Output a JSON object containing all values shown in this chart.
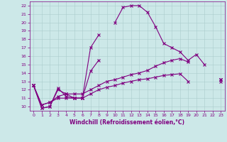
{
  "xlabel": "Windchill (Refroidissement éolien,°C)",
  "x_values": [
    0,
    1,
    2,
    3,
    4,
    5,
    6,
    7,
    8,
    9,
    10,
    11,
    12,
    13,
    14,
    15,
    16,
    17,
    18,
    19,
    20,
    21,
    22,
    23
  ],
  "line1_y": [
    12.5,
    9.8,
    10.0,
    12.0,
    11.5,
    11.0,
    11.0,
    17.0,
    18.5,
    null,
    20.0,
    21.8,
    22.0,
    22.0,
    21.2,
    19.5,
    17.5,
    17.0,
    16.5,
    15.5,
    16.2,
    15.0,
    null,
    13.0
  ],
  "line2_y": [
    12.5,
    9.8,
    10.0,
    12.2,
    11.2,
    11.0,
    11.0,
    14.2,
    15.5,
    null,
    null,
    null,
    null,
    null,
    null,
    null,
    null,
    null,
    null,
    null,
    null,
    null,
    null,
    13.2
  ],
  "line3_y": [
    12.5,
    10.2,
    10.5,
    11.2,
    11.5,
    11.5,
    11.5,
    12.0,
    12.5,
    13.0,
    13.2,
    13.5,
    13.8,
    14.0,
    14.3,
    14.8,
    15.2,
    15.5,
    15.7,
    15.3,
    null,
    null,
    null,
    13.2
  ],
  "line4_y": [
    12.5,
    10.2,
    10.5,
    11.0,
    11.0,
    11.0,
    11.0,
    11.5,
    12.0,
    12.3,
    12.5,
    12.8,
    13.0,
    13.2,
    13.3,
    13.5,
    13.7,
    13.8,
    13.9,
    13.0,
    null,
    null,
    null,
    13.2
  ],
  "xlim": [
    -0.5,
    23.5
  ],
  "ylim": [
    9.5,
    22.5
  ],
  "yticks": [
    10,
    11,
    12,
    13,
    14,
    15,
    16,
    17,
    18,
    19,
    20,
    21,
    22
  ],
  "xticks": [
    0,
    1,
    2,
    3,
    4,
    5,
    6,
    7,
    8,
    9,
    10,
    11,
    12,
    13,
    14,
    15,
    16,
    17,
    18,
    19,
    20,
    21,
    22,
    23
  ],
  "line_color": "#800080",
  "bg_color": "#cce8e8",
  "grid_color": "#aacccc",
  "tick_fontsize": 4.5,
  "xlabel_fontsize": 5.5,
  "linewidth": 0.8,
  "markersize": 3
}
